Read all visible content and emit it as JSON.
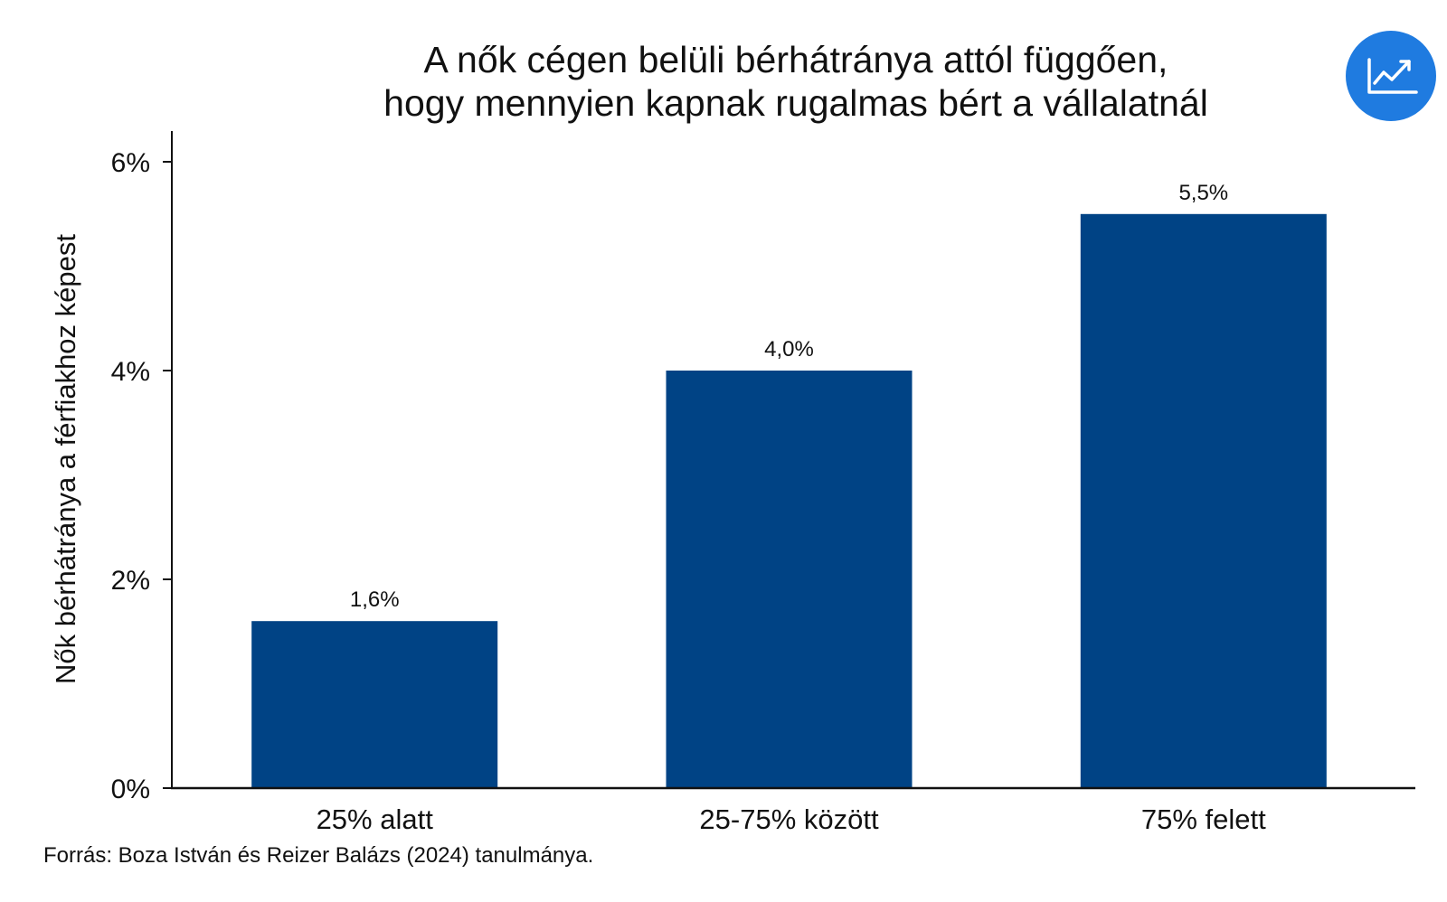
{
  "chart_data": {
    "type": "bar",
    "title": [
      "A nők cégen belüli bérhátránya attól függően,",
      "hogy mennyien kapnak rugalmas bért a vállalatnál"
    ],
    "ylabel": "Nők bérhátránya a férfiakhoz képest",
    "xlabel": "",
    "categories": [
      "25% alatt",
      "25-75% között",
      "75% felett"
    ],
    "values": [
      1.6,
      4.0,
      5.5
    ],
    "data_labels": [
      "1,6%",
      "4,0%",
      "5,5%"
    ],
    "ylim": [
      0,
      6.3
    ],
    "yticks": [
      0,
      2,
      4,
      6
    ],
    "ytick_labels": [
      "0%",
      "2%",
      "4%",
      "6%"
    ],
    "grid": false,
    "bar_color": "#004385",
    "source": "Forrás: Boza István és Reizer Balázs (2024) tanulmánya."
  },
  "logo": {
    "icon": "trend-chart-icon",
    "color": "#1f7be0"
  }
}
